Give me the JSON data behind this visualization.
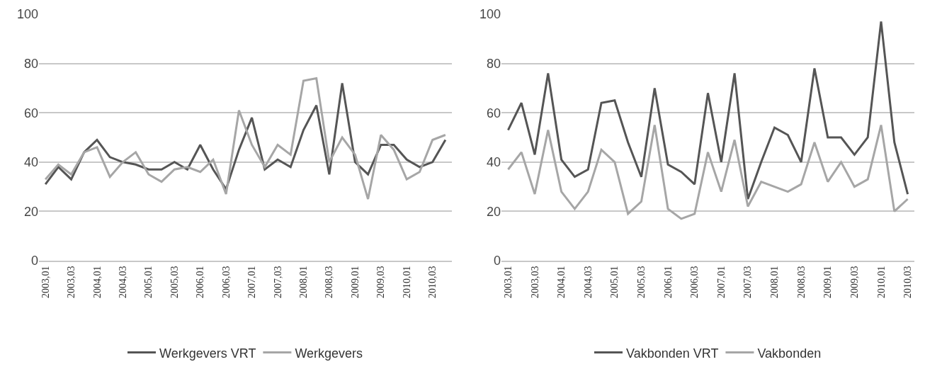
{
  "chart_data": [
    {
      "type": "line",
      "categories": [
        "2003,01",
        null,
        "2003,03",
        null,
        "2004,01",
        null,
        "2004,03",
        null,
        "2005,01",
        null,
        "2005,03",
        null,
        "2006,01",
        null,
        "2006,03",
        null,
        "2007,01",
        null,
        "2007,03",
        null,
        "2008,01",
        null,
        "2008,03",
        null,
        "2009,01",
        null,
        "2009,03",
        null,
        "2010,01",
        null,
        "2010,03",
        null
      ],
      "series": [
        {
          "name": "Werkgevers VRT",
          "color": "#555555",
          "values": [
            31,
            38,
            33,
            44,
            49,
            42,
            40,
            39,
            37,
            37,
            40,
            37,
            47,
            37,
            29,
            45,
            58,
            37,
            41,
            38,
            53,
            63,
            35,
            72,
            40,
            35,
            47,
            47,
            41,
            38,
            40,
            49
          ]
        },
        {
          "name": "Werkgevers",
          "color": "#a6a6a6",
          "values": [
            33,
            39,
            35,
            44,
            46,
            34,
            40,
            44,
            35,
            32,
            37,
            38,
            36,
            41,
            27,
            61,
            47,
            38,
            47,
            43,
            73,
            74,
            40,
            50,
            43,
            25,
            51,
            45,
            33,
            36,
            49,
            51
          ]
        }
      ],
      "ylim": [
        0,
        100
      ],
      "yticks": [
        0,
        20,
        40,
        60,
        80,
        100
      ],
      "grid": "y",
      "legend": "bottom",
      "marker": "none",
      "line_style": "solid"
    },
    {
      "type": "line",
      "categories": [
        "2003,01",
        null,
        "2003,03",
        null,
        "2004,01",
        null,
        "2004,03",
        null,
        "2005,01",
        null,
        "2005,03",
        null,
        "2006,01",
        null,
        "2006,03",
        null,
        "2007,01",
        null,
        "2007,03",
        null,
        "2008,01",
        null,
        "2008,03",
        null,
        "2009,01",
        null,
        "2009,03",
        null,
        "2010,01",
        null,
        "2010,03"
      ],
      "series": [
        {
          "name": "Vakbonden VRT",
          "color": "#555555",
          "values": [
            53,
            64,
            43,
            76,
            41,
            34,
            37,
            64,
            65,
            48,
            34,
            70,
            39,
            36,
            31,
            68,
            40,
            76,
            25,
            40,
            54,
            51,
            40,
            78,
            50,
            50,
            43,
            50,
            97,
            48,
            27
          ]
        },
        {
          "name": "Vakbonden",
          "color": "#a6a6a6",
          "values": [
            37,
            44,
            27,
            53,
            28,
            21,
            28,
            45,
            40,
            19,
            24,
            55,
            21,
            17,
            19,
            44,
            28,
            49,
            22,
            32,
            30,
            28,
            31,
            48,
            32,
            40,
            30,
            33,
            55,
            20,
            25
          ]
        }
      ],
      "ylim": [
        0,
        100
      ],
      "yticks": [
        0,
        20,
        40,
        60,
        80,
        100
      ],
      "grid": "y",
      "legend": "bottom",
      "marker": "none",
      "line_style": "solid"
    }
  ]
}
